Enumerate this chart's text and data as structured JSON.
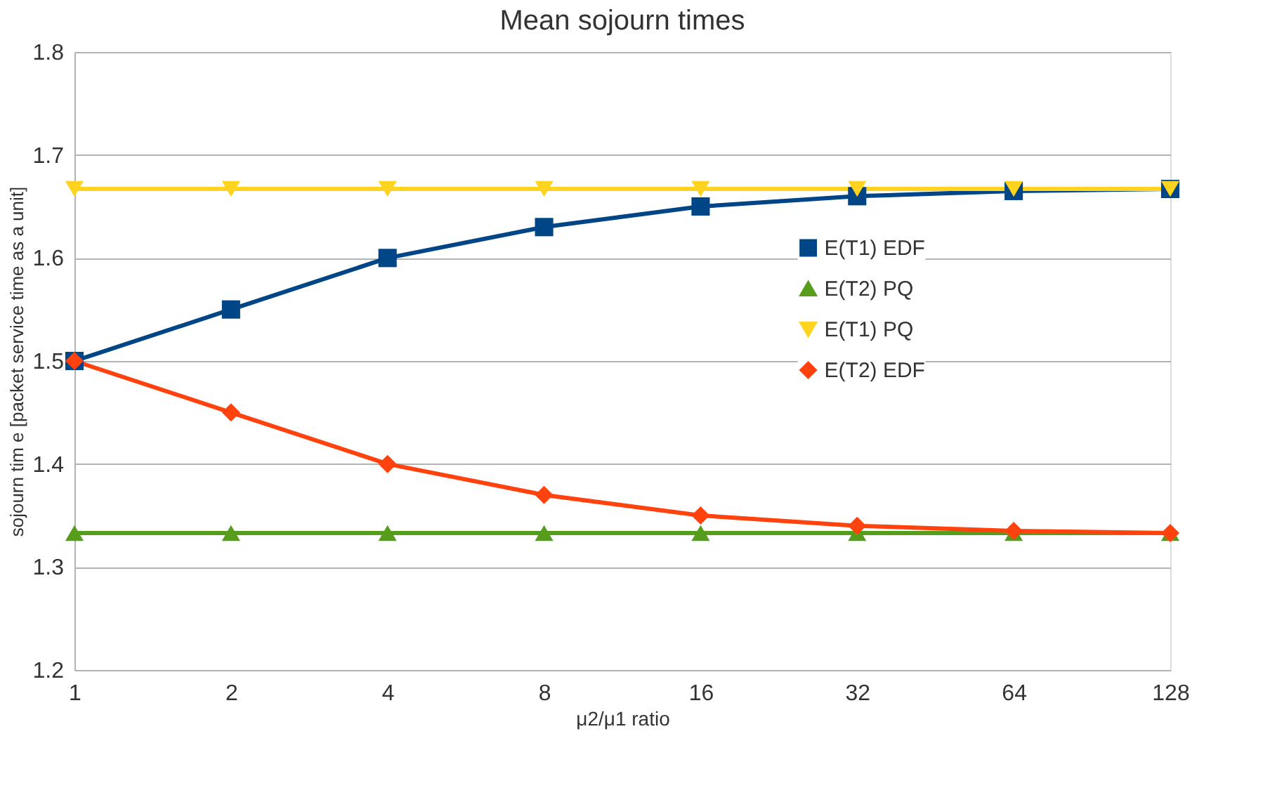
{
  "chart_data": {
    "type": "line",
    "title": "Mean sojourn times",
    "xlabel": "μ2/μ1 ratio",
    "ylabel": "sojourn tim e [packet service time as a unit]",
    "categories": [
      "1",
      "2",
      "4",
      "8",
      "16",
      "32",
      "64",
      "128"
    ],
    "series": [
      {
        "name": "E(T1) EDF",
        "color": "#004586",
        "marker": "square",
        "values": [
          1.5,
          1.55,
          1.6,
          1.63,
          1.65,
          1.66,
          1.665,
          1.667
        ]
      },
      {
        "name": "E(T2) PQ",
        "color": "#579d1c",
        "marker": "triangle",
        "values": [
          1.333,
          1.333,
          1.333,
          1.333,
          1.333,
          1.333,
          1.333,
          1.333
        ]
      },
      {
        "name": "E(T1) PQ",
        "color": "#ffd320",
        "marker": "triangle-down",
        "values": [
          1.667,
          1.667,
          1.667,
          1.667,
          1.667,
          1.667,
          1.667,
          1.667
        ]
      },
      {
        "name": "E(T2) EDF",
        "color": "#ff420e",
        "marker": "diamond",
        "values": [
          1.5,
          1.45,
          1.4,
          1.37,
          1.35,
          1.34,
          1.335,
          1.333
        ]
      }
    ],
    "ylim": [
      1.2,
      1.8
    ],
    "yticks": [
      1.2,
      1.3,
      1.4,
      1.5,
      1.6,
      1.7,
      1.8
    ],
    "grid": "y",
    "legend": "right",
    "line_style": "solid"
  }
}
